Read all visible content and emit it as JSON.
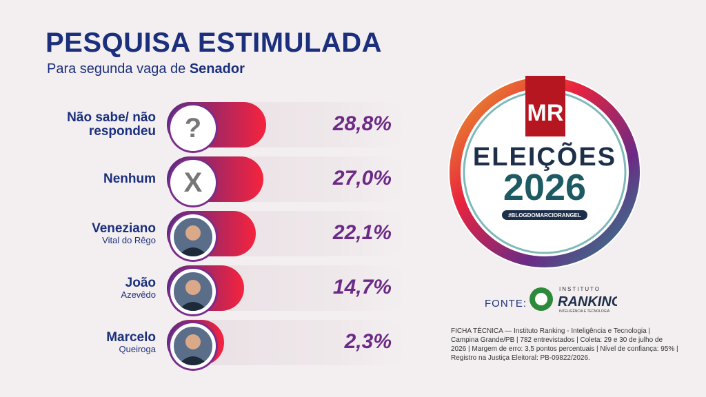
{
  "chart_data": {
    "type": "bar",
    "orientation": "horizontal",
    "title": "PESQUISA ESTIMULADA",
    "subtitle": "Para segunda vaga de",
    "subtitle_emphasis": "Senador",
    "categories": [
      "Não sabe/ não respondeu",
      "Nenhum",
      "Veneziano",
      "João",
      "Marcelo"
    ],
    "category_notes": [
      null,
      null,
      "Vital do Rêgo",
      "Azevêdo",
      "Queiroga"
    ],
    "icons": [
      "?",
      "X",
      null,
      null,
      null
    ],
    "values": [
      28.8,
      27.0,
      22.1,
      14.7,
      2.3
    ],
    "value_labels": [
      "28,8%",
      "27,0%",
      "22,1%",
      "14,7%",
      "2,3%"
    ],
    "color_start": "#5a2a84",
    "color_end": "#f6233d"
  },
  "logo": {
    "brand": "MR",
    "line1": "ELEIÇÕES",
    "line2": "2026",
    "tag": "#BLOGDOMARCIORANGEL"
  },
  "source": {
    "label": "FONTE:",
    "inst_top": "INSTITUTO",
    "inst_name": "RANKING",
    "inst_sub": "INTELIGÊNCIA E TECNOLOGIA",
    "ficha": "FICHA TÉCNICA — Instituto Ranking - Inteligência e Tecnologia | Campina Grande/PB | 782 entrevistados | Coleta: 29 e 30 de julho de 2026 | Margem de erro: 3,5 pontos percentuais | Nível de confiança: 95% | Registro na Justiça Eleitoral: PB-09822/2026."
  }
}
